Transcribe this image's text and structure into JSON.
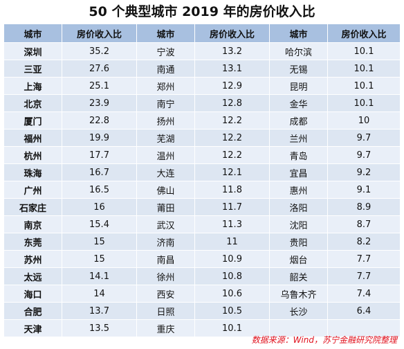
{
  "title": "50 个典型城市 2019 年的房价收入比",
  "headers": [
    "城市",
    "房价收入比",
    "城市",
    "房价收入比",
    "城市",
    "房价收入比"
  ],
  "rows": [
    [
      "深圳",
      "35.2",
      "宁波",
      "13.2",
      "哈尔滨",
      "10.1"
    ],
    [
      "三亚",
      "27.6",
      "南通",
      "13.1",
      "无锡",
      "10.1"
    ],
    [
      "上海",
      "25.1",
      "郑州",
      "12.9",
      "昆明",
      "10.1"
    ],
    [
      "北京",
      "23.9",
      "南宁",
      "12.8",
      "金华",
      "10.1"
    ],
    [
      "厦门",
      "22.8",
      "扬州",
      "12.2",
      "成都",
      "10"
    ],
    [
      "福州",
      "19.9",
      "芜湖",
      "12.2",
      "兰州",
      "9.7"
    ],
    [
      "杭州",
      "17.7",
      "温州",
      "12.2",
      "青岛",
      "9.7"
    ],
    [
      "珠海",
      "16.7",
      "大连",
      "12.1",
      "宜昌",
      "9.2"
    ],
    [
      "广州",
      "16.5",
      "佛山",
      "11.8",
      "惠州",
      "9.1"
    ],
    [
      "石家庄",
      "16",
      "莆田",
      "11.7",
      "洛阳",
      "8.9"
    ],
    [
      "南京",
      "15.4",
      "武汉",
      "11.3",
      "沈阳",
      "8.7"
    ],
    [
      "东莞",
      "15",
      "济南",
      "11",
      "贵阳",
      "8.2"
    ],
    [
      "苏州",
      "15",
      "南昌",
      "10.9",
      "烟台",
      "7.7"
    ],
    [
      "太远",
      "14.1",
      "徐州",
      "10.8",
      "韶关",
      "7.7"
    ],
    [
      "海口",
      "14",
      "西安",
      "10.6",
      "乌鲁木齐",
      "7.4"
    ],
    [
      "合肥",
      "13.7",
      "日照",
      "10.5",
      "长沙",
      "6.4"
    ],
    [
      "天津",
      "13.5",
      "重庆",
      "10.1",
      "",
      ""
    ]
  ],
  "source": "数据来源：Wind，苏宁金融研究院整理"
}
